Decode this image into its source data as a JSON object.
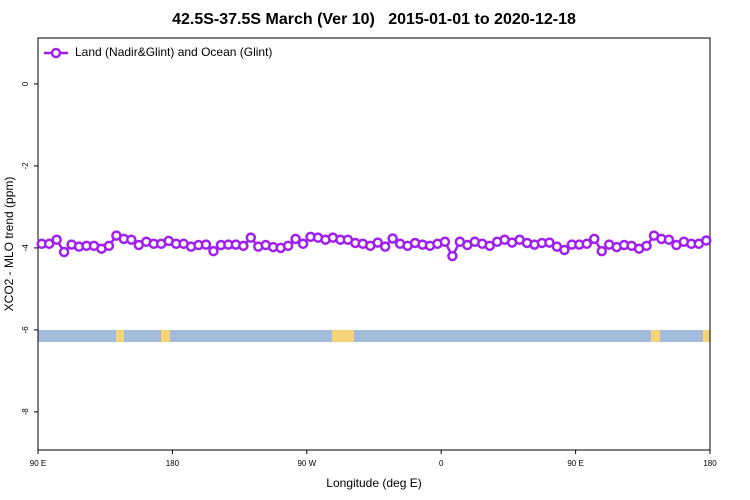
{
  "chart_data": {
    "type": "line",
    "title": "42.5S-37.5S March (Ver 10)   2015-01-01 to 2020-12-18",
    "xlabel": "Longitude (deg E)",
    "ylabel": "XCO2 - MLO trend (ppm)",
    "xlim": [
      90,
      540
    ],
    "ylim": [
      -8.93,
      1.12
    ],
    "xticks": [
      {
        "value": 90,
        "label": "90 E"
      },
      {
        "value": 180,
        "label": "180"
      },
      {
        "value": 270,
        "label": "90 W"
      },
      {
        "value": 360,
        "label": "0"
      },
      {
        "value": 450,
        "label": "90 E"
      },
      {
        "value": 540,
        "label": "180"
      }
    ],
    "yticks": [
      0,
      -2,
      -4,
      -6,
      -8
    ],
    "legend": "top-left",
    "x": [
      92.5,
      97.5,
      102.5,
      107.5,
      112.5,
      117.5,
      122.5,
      127.5,
      132.5,
      137.5,
      142.5,
      147.5,
      152.5,
      157.5,
      162.5,
      167.5,
      172.5,
      177.5,
      182.5,
      187.5,
      192.5,
      197.5,
      202.5,
      207.5,
      212.5,
      217.5,
      222.5,
      227.5,
      232.5,
      237.5,
      242.5,
      247.5,
      252.5,
      257.5,
      262.5,
      267.5,
      272.5,
      277.5,
      282.5,
      287.5,
      292.5,
      297.5,
      302.5,
      307.5,
      312.5,
      317.5,
      322.5,
      327.5,
      332.5,
      337.5,
      342.5,
      347.5,
      352.5,
      357.5,
      362.5,
      367.5,
      372.5,
      377.5,
      382.5,
      387.5,
      392.5,
      397.5,
      402.5,
      407.5,
      412.5,
      417.5,
      422.5,
      427.5,
      432.5,
      437.5,
      442.5,
      447.5,
      452.5,
      457.5,
      462.5,
      467.5,
      472.5,
      477.5,
      482.5,
      487.5,
      492.5,
      497.5,
      502.5,
      507.5,
      512.5,
      517.5,
      522.5,
      527.5,
      532.5,
      537.5
    ],
    "series": [
      {
        "name": "Land (Nadir&Glint) and Ocean (Glint)",
        "color": "#a020f0",
        "values": [
          -3.9,
          -3.9,
          -3.8,
          -4.1,
          -3.92,
          -3.97,
          -3.95,
          -3.95,
          -4.02,
          -3.95,
          -3.7,
          -3.78,
          -3.8,
          -3.93,
          -3.85,
          -3.9,
          -3.9,
          -3.83,
          -3.9,
          -3.9,
          -3.97,
          -3.93,
          -3.92,
          -4.08,
          -3.93,
          -3.92,
          -3.92,
          -3.95,
          -3.75,
          -3.97,
          -3.93,
          -3.98,
          -4.0,
          -3.95,
          -3.78,
          -3.9,
          -3.73,
          -3.75,
          -3.8,
          -3.75,
          -3.8,
          -3.8,
          -3.88,
          -3.9,
          -3.95,
          -3.87,
          -3.97,
          -3.77,
          -3.9,
          -3.95,
          -3.88,
          -3.92,
          -3.95,
          -3.9,
          -3.85,
          -4.2,
          -3.85,
          -3.93,
          -3.85,
          -3.9,
          -3.95,
          -3.85,
          -3.8,
          -3.87,
          -3.8,
          -3.88,
          -3.92,
          -3.88,
          -3.87,
          -3.97,
          -4.05,
          -3.92,
          -3.92,
          -3.9,
          -3.78,
          -4.08,
          -3.92,
          -3.98,
          -3.93,
          -3.95,
          -4.02,
          -3.95,
          -3.7,
          -3.78,
          -3.8,
          -3.93,
          -3.85,
          -3.9,
          -3.9,
          -3.82
        ]
      }
    ]
  }
}
